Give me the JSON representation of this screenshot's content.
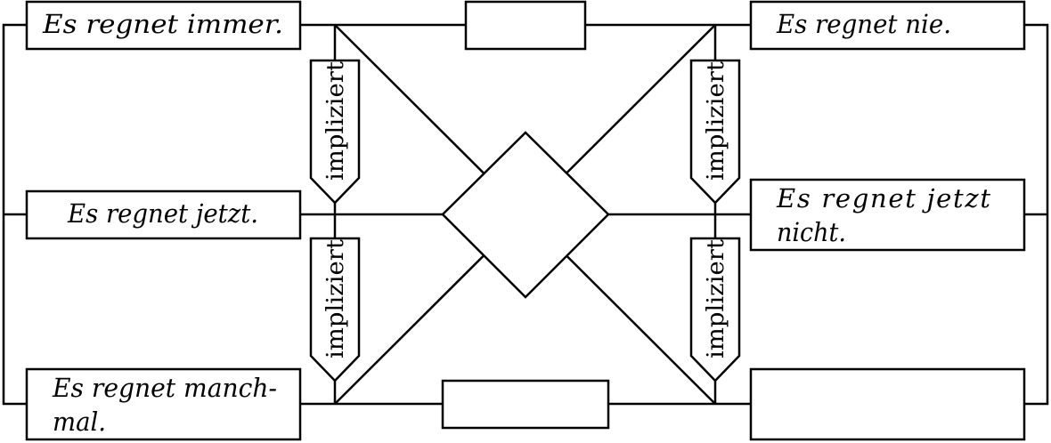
{
  "colors": {
    "stroke": "#000000",
    "fill": "#ffffff"
  },
  "boxes": {
    "top_left": "Es regnet immer.",
    "top_center": "",
    "top_right": "Es regnet nie.",
    "middle_left": "Es regnet jetzt.",
    "center_diamond": "",
    "middle_right_line1": "Es   regnet   jetzt",
    "middle_right_line2": "nicht.",
    "bottom_left_line1": "Es regnet manch-",
    "bottom_left_line2": "mal.",
    "bottom_center": "",
    "bottom_right": ""
  },
  "arrows": {
    "upper_left": "impliziert",
    "lower_left": "impliziert",
    "upper_right": "impliziert",
    "lower_right": "impliziert"
  }
}
